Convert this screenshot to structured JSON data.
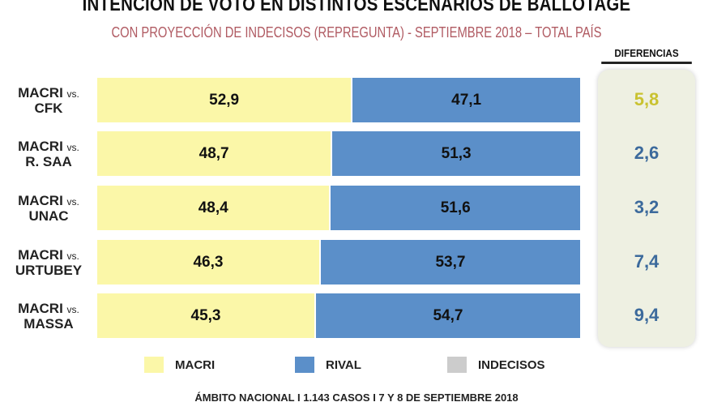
{
  "chart_data": {
    "type": "bar",
    "stacked": true,
    "orientation": "horizontal",
    "title": "INTENCIÓN DE VOTO EN DISTINTOS ESCENARIOS DE BALLOTAGE",
    "subtitle": "CON PROYECCIÓN DE INDECISOS (REPREGUNTA) - SEPTIEMBRE 2018 – TOTAL PAÍS",
    "categories": [
      {
        "main": "MACRI",
        "vs": "vs.",
        "rival": "CFK"
      },
      {
        "main": "MACRI",
        "vs": "vs.",
        "rival": "R. SAA"
      },
      {
        "main": "MACRI",
        "vs": "vs.",
        "rival": "UNAC"
      },
      {
        "main": "MACRI",
        "vs": "vs.",
        "rival": "URTUBEY"
      },
      {
        "main": "MACRI",
        "vs": "vs.",
        "rival": "MASSA"
      }
    ],
    "series": [
      {
        "name": "MACRI",
        "color": "#fbf7a8",
        "values": [
          52.9,
          48.7,
          48.4,
          46.3,
          45.3
        ],
        "labels": [
          "52,9",
          "48,7",
          "48,4",
          "46,3",
          "45,3"
        ]
      },
      {
        "name": "RIVAL",
        "color": "#5b8fc9",
        "values": [
          47.1,
          51.3,
          51.6,
          53.7,
          54.7
        ],
        "labels": [
          "47,1",
          "51,3",
          "51,6",
          "53,7",
          "54,7"
        ]
      },
      {
        "name": "INDECISOS",
        "color": "#cccccc",
        "values": [
          0,
          0,
          0,
          0,
          0
        ]
      }
    ],
    "differences_header": "DIFERENCIAS",
    "differences": [
      "5,8",
      "2,6",
      "3,2",
      "7,4",
      "9,4"
    ],
    "difference_colors": [
      "#c9c230",
      "#3c6a9c",
      "#3c6a9c",
      "#3c6a9c",
      "#3c6a9c"
    ],
    "xlim": [
      0,
      100
    ],
    "legend_position": "bottom",
    "footer": "ÁMBITO NACIONAL I 1.143 CASOS I  7 Y 8 DE SEPTIEMBRE 2018"
  }
}
